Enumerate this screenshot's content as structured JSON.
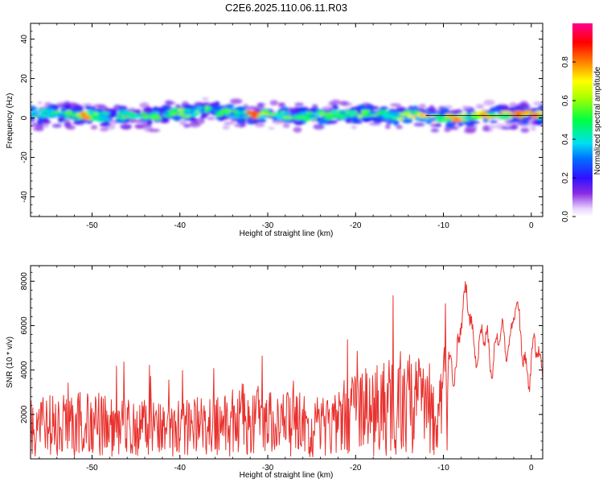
{
  "title": "C2E6.2025.110.06.11.R03",
  "chart_data": [
    {
      "type": "heatmap",
      "xlabel": "Height of straight line (km)",
      "ylabel": "Frequency (Hz)",
      "xlim": [
        -57,
        1.3
      ],
      "ylim": [
        -50,
        48
      ],
      "xticks": [
        -50,
        -40,
        -30,
        -20,
        -10,
        0
      ],
      "yticks": [
        -40,
        -20,
        0,
        20,
        40
      ],
      "colorbar": {
        "label": "Normalized spectral amplitude",
        "range": [
          0,
          1
        ],
        "ticks": [
          0.0,
          0.2,
          0.4,
          0.6,
          0.8
        ],
        "colormap": "rainbow (white-violet-blue-cyan-green-yellow-red-magenta)"
      },
      "description_points": [
        {
          "x": -56,
          "y": 2.0,
          "amp": 0.45
        },
        {
          "x": -54,
          "y": 2.5,
          "amp": 0.5
        },
        {
          "x": -52,
          "y": 1.5,
          "amp": 0.55
        },
        {
          "x": -51,
          "y": 2.0,
          "amp": 0.85
        },
        {
          "x": -49,
          "y": 0.5,
          "amp": 0.4
        },
        {
          "x": -47,
          "y": 1.0,
          "amp": 0.5
        },
        {
          "x": -45,
          "y": 2.0,
          "amp": 0.55
        },
        {
          "x": -43,
          "y": 1.0,
          "amp": 0.5
        },
        {
          "x": -41,
          "y": 3.0,
          "amp": 0.6
        },
        {
          "x": -39,
          "y": 2.5,
          "amp": 0.6
        },
        {
          "x": -37,
          "y": 4.0,
          "amp": 0.55
        },
        {
          "x": -35,
          "y": 3.0,
          "amp": 0.55
        },
        {
          "x": -33,
          "y": 2.0,
          "amp": 0.6
        },
        {
          "x": -31.5,
          "y": 1.5,
          "amp": 0.9
        },
        {
          "x": -30,
          "y": 2.5,
          "amp": 0.6
        },
        {
          "x": -28,
          "y": 1.0,
          "amp": 0.55
        },
        {
          "x": -26,
          "y": 0.5,
          "amp": 0.5
        },
        {
          "x": -24,
          "y": 1.5,
          "amp": 0.55
        },
        {
          "x": -22,
          "y": 2.0,
          "amp": 0.5
        },
        {
          "x": -20,
          "y": 1.5,
          "amp": 0.6
        },
        {
          "x": -18,
          "y": 2.0,
          "amp": 0.55
        },
        {
          "x": -16,
          "y": 1.0,
          "amp": 0.55
        },
        {
          "x": -14,
          "y": 1.5,
          "amp": 0.6
        },
        {
          "x": -12.5,
          "y": 1.5,
          "amp": 0.8
        },
        {
          "x": -10,
          "y": 0.0,
          "amp": 0.6
        },
        {
          "x": -8.5,
          "y": -0.5,
          "amp": 0.85
        },
        {
          "x": -7,
          "y": 0.5,
          "amp": 0.5
        },
        {
          "x": -5.5,
          "y": 1.5,
          "amp": 0.85
        },
        {
          "x": -3.5,
          "y": 1.5,
          "amp": 0.6
        },
        {
          "x": -1.5,
          "y": 1.5,
          "amp": 0.9
        },
        {
          "x": 0.5,
          "y": 1.5,
          "amp": 0.9
        }
      ]
    },
    {
      "type": "line",
      "xlabel": "Height of straight line (km)",
      "ylabel": "SNR (10 * v/v)",
      "xlim": [
        -57,
        1.3
      ],
      "ylim": [
        0,
        8700
      ],
      "xticks": [
        -50,
        -40,
        -30,
        -20,
        -10,
        0
      ],
      "yticks": [
        2000,
        4000,
        6000,
        8000
      ],
      "color": "#e8322e",
      "envelope": [
        {
          "x": -57,
          "y": 1400
        },
        {
          "x": -55,
          "y": 1500
        },
        {
          "x": -53,
          "y": 1500
        },
        {
          "x": -51,
          "y": 1700
        },
        {
          "x": -49,
          "y": 1500
        },
        {
          "x": -47,
          "y": 1500
        },
        {
          "x": -45,
          "y": 1400
        },
        {
          "x": -43,
          "y": 1350
        },
        {
          "x": -41,
          "y": 1300
        },
        {
          "x": -39,
          "y": 1400
        },
        {
          "x": -37,
          "y": 1450
        },
        {
          "x": -35,
          "y": 1600
        },
        {
          "x": -33,
          "y": 1800
        },
        {
          "x": -31,
          "y": 1700
        },
        {
          "x": -29,
          "y": 1500
        },
        {
          "x": -27,
          "y": 1600
        },
        {
          "x": -25,
          "y": 1500
        },
        {
          "x": -23,
          "y": 1450
        },
        {
          "x": -21,
          "y": 1800
        },
        {
          "x": -19,
          "y": 2100
        },
        {
          "x": -17,
          "y": 2300
        },
        {
          "x": -15,
          "y": 2500
        },
        {
          "x": -13,
          "y": 2400
        },
        {
          "x": -11,
          "y": 2300
        },
        {
          "x": -9.5,
          "y": 3500
        },
        {
          "x": -8,
          "y": 6000
        },
        {
          "x": -7,
          "y": 7000
        },
        {
          "x": -6,
          "y": 4500
        },
        {
          "x": -5,
          "y": 5500
        },
        {
          "x": -4,
          "y": 4800
        },
        {
          "x": -3,
          "y": 5200
        },
        {
          "x": -2,
          "y": 6500
        },
        {
          "x": -1,
          "y": 5000
        },
        {
          "x": 0,
          "y": 4200
        },
        {
          "x": 1.3,
          "y": 4500
        }
      ]
    }
  ]
}
